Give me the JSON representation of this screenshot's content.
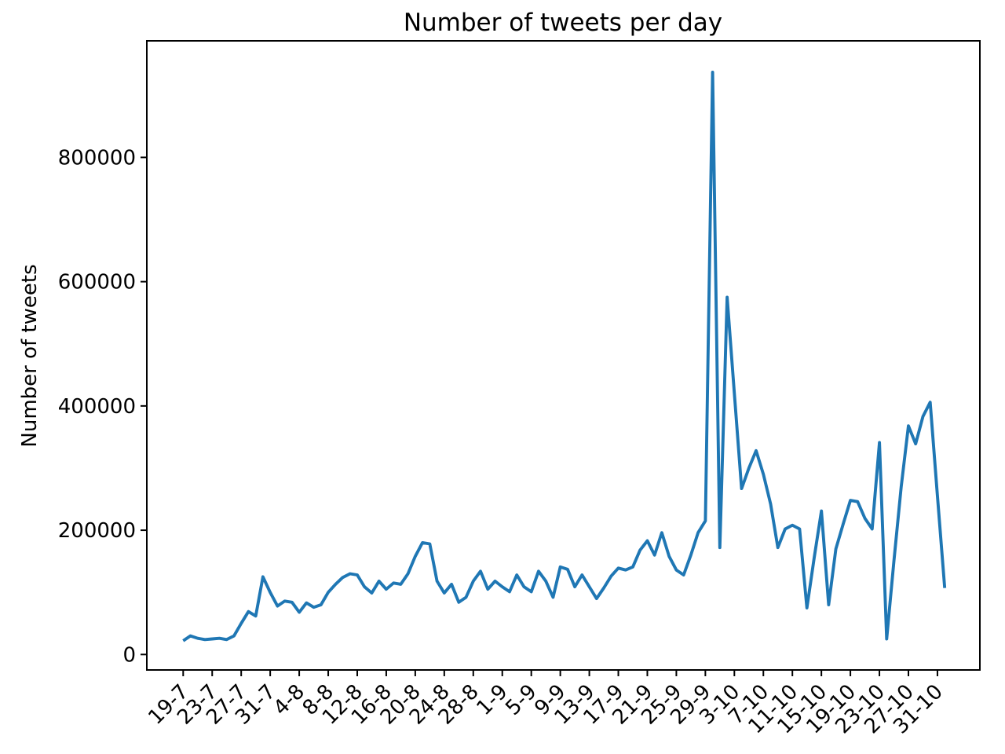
{
  "chart_data": {
    "type": "line",
    "title": "Number of tweets per day",
    "xlabel": "",
    "ylabel": "Number of tweets",
    "line_color": "#1f77b4",
    "background_color": "#ffffff",
    "grid": false,
    "legend": null,
    "y_ticks": [
      0,
      200000,
      400000,
      600000,
      800000
    ],
    "y_tick_labels": [
      "0",
      "200000",
      "400000",
      "600000",
      "800000"
    ],
    "ylim": [
      -25000,
      988000
    ],
    "x_tick_every_n_days": 4,
    "x_tick_labels": [
      "19-7",
      "23-7",
      "27-7",
      "31-7",
      "4-8",
      "8-8",
      "12-8",
      "16-8",
      "20-8",
      "24-8",
      "28-8",
      "1-9",
      "5-9",
      "9-9",
      "13-9",
      "17-9",
      "21-9",
      "25-9",
      "29-9",
      "3-10",
      "7-10",
      "11-10",
      "15-10",
      "19-10",
      "23-10",
      "27-10",
      "31-10"
    ],
    "x": [
      "19-7",
      "20-7",
      "21-7",
      "22-7",
      "23-7",
      "24-7",
      "25-7",
      "26-7",
      "27-7",
      "28-7",
      "29-7",
      "30-7",
      "31-7",
      "1-8",
      "2-8",
      "3-8",
      "4-8",
      "5-8",
      "6-8",
      "7-8",
      "8-8",
      "9-8",
      "10-8",
      "11-8",
      "12-8",
      "13-8",
      "14-8",
      "15-8",
      "16-8",
      "17-8",
      "18-8",
      "19-8",
      "20-8",
      "21-8",
      "22-8",
      "23-8",
      "24-8",
      "25-8",
      "26-8",
      "27-8",
      "28-8",
      "29-8",
      "30-8",
      "31-8",
      "1-9",
      "2-9",
      "3-9",
      "4-9",
      "5-9",
      "6-9",
      "7-9",
      "8-9",
      "9-9",
      "10-9",
      "11-9",
      "12-9",
      "13-9",
      "14-9",
      "15-9",
      "16-9",
      "17-9",
      "18-9",
      "19-9",
      "20-9",
      "21-9",
      "22-9",
      "23-9",
      "24-9",
      "25-9",
      "26-9",
      "27-9",
      "28-9",
      "29-9",
      "30-9",
      "1-10",
      "2-10",
      "3-10",
      "4-10",
      "5-10",
      "6-10",
      "7-10",
      "8-10",
      "9-10",
      "10-10",
      "11-10",
      "12-10",
      "13-10",
      "14-10",
      "15-10",
      "16-10",
      "17-10",
      "18-10",
      "19-10",
      "20-10",
      "21-10",
      "22-10",
      "23-10",
      "24-10",
      "25-10",
      "26-10",
      "27-10",
      "28-10",
      "29-10",
      "30-10",
      "31-10",
      "1-11"
    ],
    "values": [
      22000,
      30000,
      26000,
      24000,
      25000,
      26000,
      24000,
      30000,
      50000,
      69000,
      62000,
      125000,
      100000,
      78000,
      86000,
      84000,
      68000,
      83000,
      76000,
      80000,
      100000,
      113000,
      124000,
      130000,
      128000,
      109000,
      99000,
      118000,
      105000,
      115000,
      113000,
      130000,
      158000,
      180000,
      178000,
      118000,
      99000,
      113000,
      84000,
      92000,
      118000,
      134000,
      105000,
      118000,
      109000,
      101000,
      128000,
      109000,
      101000,
      134000,
      118000,
      92000,
      141000,
      137000,
      109000,
      128000,
      109000,
      90000,
      107000,
      126000,
      139000,
      136000,
      141000,
      168000,
      183000,
      160000,
      196000,
      158000,
      136000,
      128000,
      160000,
      196000,
      215000,
      937000,
      172000,
      575000,
      420000,
      267000,
      300000,
      328000,
      290000,
      242000,
      172000,
      202000,
      208000,
      202000,
      75000,
      155000,
      231000,
      80000,
      170000,
      210000,
      248000,
      246000,
      219000,
      202000,
      341000,
      25000,
      150000,
      270000,
      368000,
      339000,
      383000,
      406000,
      256000,
      107000
    ]
  }
}
